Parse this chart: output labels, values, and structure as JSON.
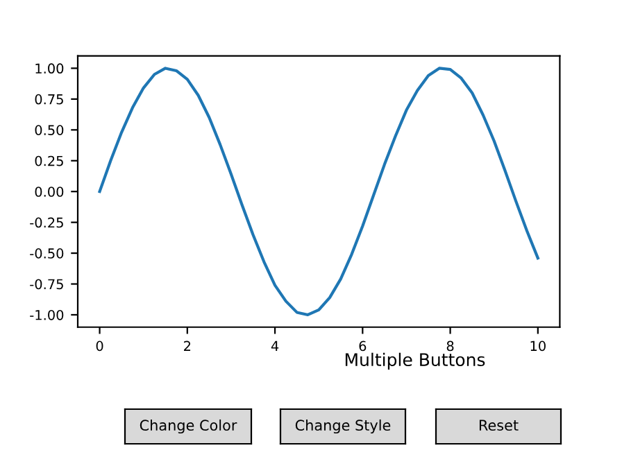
{
  "chart_data": {
    "type": "line",
    "title": "Multiple Buttons",
    "annotations": [
      "Change Color",
      "Change Style",
      "Reset"
    ],
    "x": [
      0,
      0.25,
      0.5,
      0.75,
      1,
      1.25,
      1.5,
      1.75,
      2,
      2.25,
      2.5,
      2.75,
      3,
      3.25,
      3.5,
      3.75,
      4,
      4.25,
      4.5,
      4.75,
      5,
      5.25,
      5.5,
      5.75,
      6,
      6.25,
      6.5,
      6.75,
      7,
      7.25,
      7.5,
      7.75,
      8,
      8.25,
      8.5,
      8.75,
      9,
      9.25,
      9.5,
      9.75,
      10
    ],
    "series": [
      {
        "color": "#1f77b4",
        "values": [
          0,
          0.25,
          0.48,
          0.68,
          0.84,
          0.95,
          1.0,
          0.98,
          0.91,
          0.78,
          0.6,
          0.38,
          0.14,
          -0.11,
          -0.35,
          -0.57,
          -0.76,
          -0.89,
          -0.98,
          -1.0,
          -0.96,
          -0.86,
          -0.71,
          -0.51,
          -0.28,
          -0.03,
          0.22,
          0.45,
          0.66,
          0.82,
          0.94,
          1.0,
          0.99,
          0.92,
          0.8,
          0.62,
          0.41,
          0.17,
          -0.08,
          -0.32,
          -0.54
        ]
      }
    ],
    "xlim": [
      -0.5,
      10.5
    ],
    "ylim": [
      -1.1,
      1.1
    ],
    "xticks": [
      0,
      2,
      4,
      6,
      8,
      10
    ],
    "yticks": [
      {
        "value": -1,
        "label": "-1.00"
      },
      {
        "value": -0.75,
        "label": "-0.75"
      },
      {
        "value": -0.5,
        "label": "-0.50"
      },
      {
        "value": -0.25,
        "label": "-0.25"
      },
      {
        "value": 0,
        "label": "0.00"
      },
      {
        "value": 0.25,
        "label": "0.25"
      },
      {
        "value": 0.5,
        "label": "0.50"
      },
      {
        "value": 0.75,
        "label": "0.75"
      },
      {
        "value": 1,
        "label": "1.00"
      }
    ],
    "grid": false,
    "legend": false,
    "marker": "none",
    "line_style": "solid"
  }
}
